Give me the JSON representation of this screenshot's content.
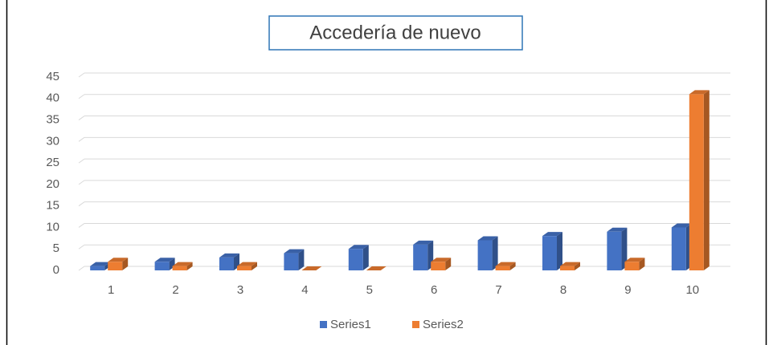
{
  "chart_data": {
    "type": "bar3d",
    "title": "Accedería de nuevo",
    "categories": [
      "1",
      "2",
      "3",
      "4",
      "5",
      "6",
      "7",
      "8",
      "9",
      "10"
    ],
    "series": [
      {
        "name": "Series1",
        "color": "#4472c4",
        "values": [
          1,
          2,
          3,
          4,
          5,
          6,
          7,
          8,
          9,
          10
        ]
      },
      {
        "name": "Series2",
        "color": "#ed7d31",
        "values": [
          2,
          1,
          1,
          0,
          0,
          2,
          1,
          1,
          2,
          41
        ]
      }
    ],
    "ylim": [
      0,
      45
    ],
    "yticks": [
      0,
      5,
      10,
      15,
      20,
      25,
      30,
      35,
      40,
      45
    ],
    "grid": true,
    "legend": "bottom"
  }
}
